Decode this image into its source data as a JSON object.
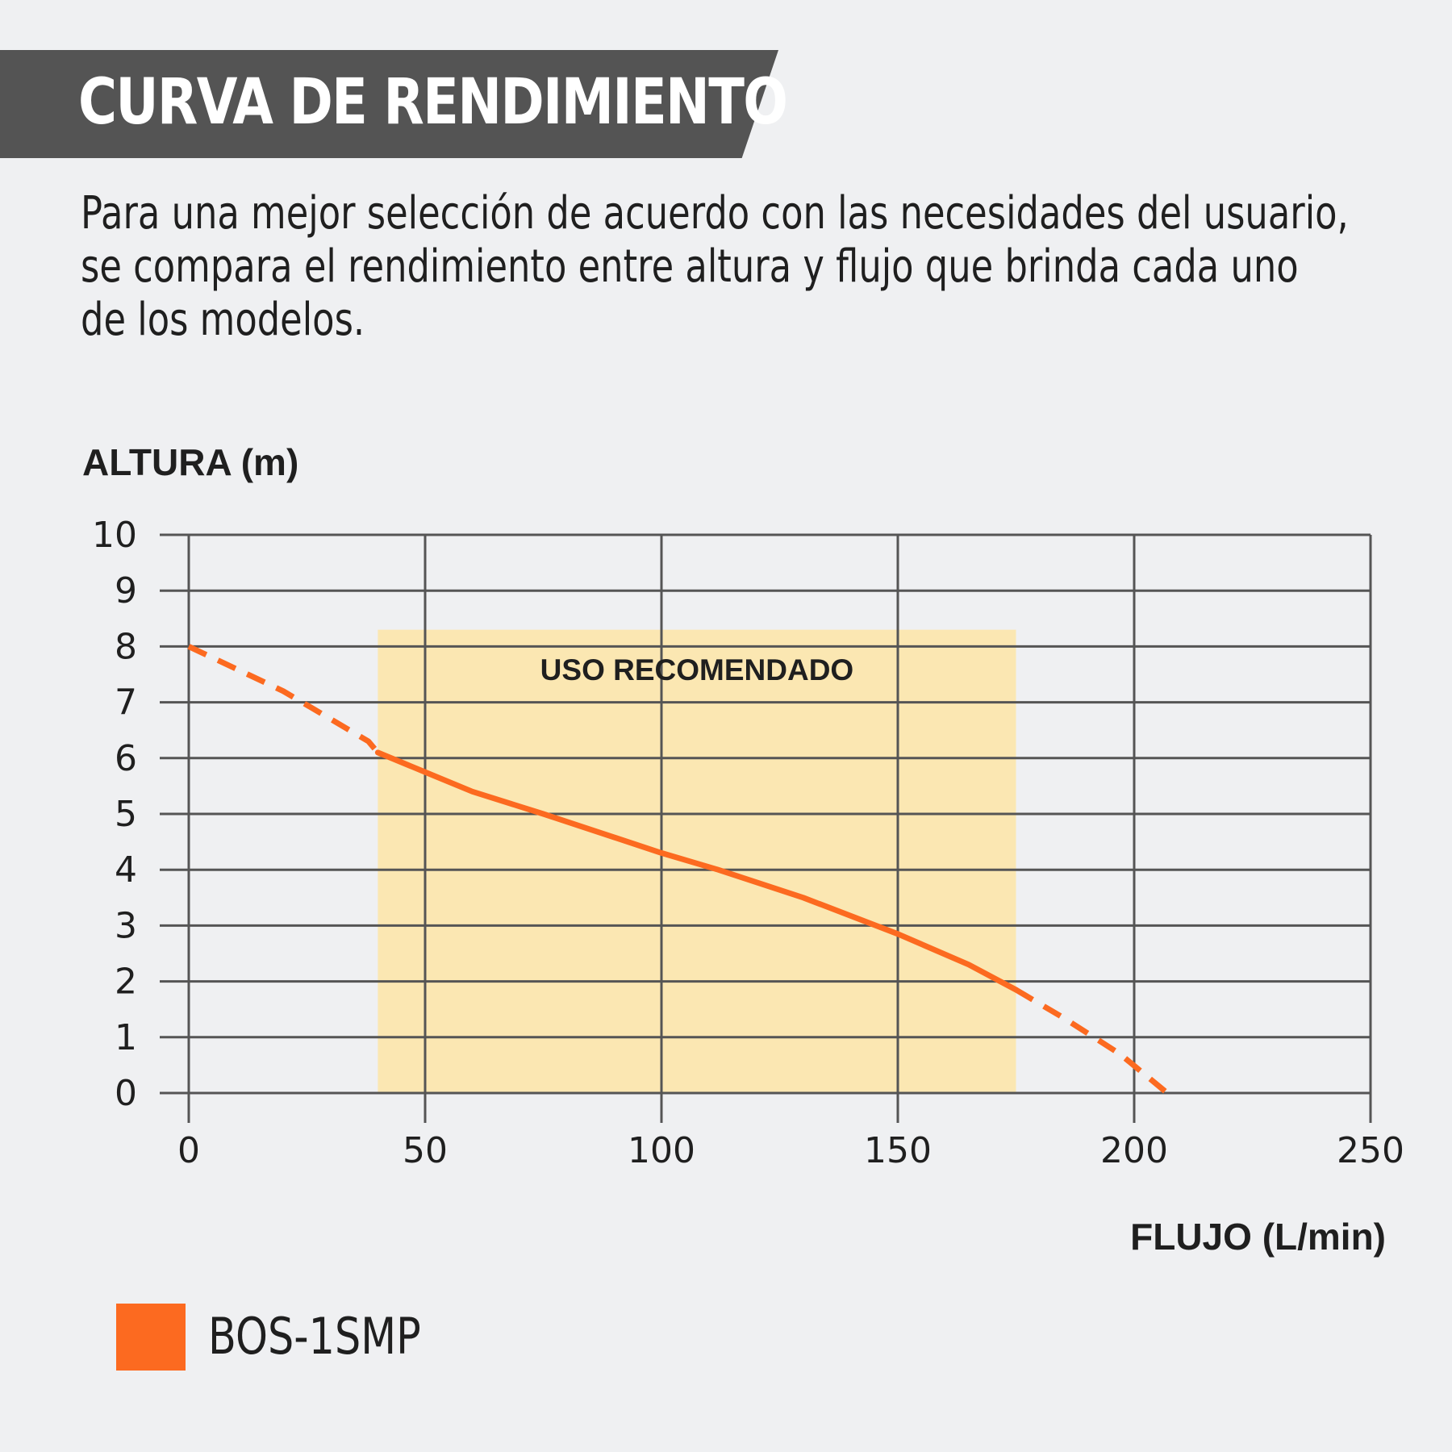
{
  "header": {
    "title": "CURVA DE RENDIMIENTO",
    "subtitle_lines": [
      "Para una mejor selección de acuerdo con las necesidades del usuario,",
      "se compara el rendimiento entre altura y flujo que brinda cada uno",
      "de los modelos."
    ]
  },
  "colors": {
    "background": "#eff0f2",
    "title_band": "#545454",
    "series": "#fc6a20",
    "recommended_band": "#fbe7b2",
    "grid": "#555555",
    "text": "#1f1f1f"
  },
  "chart_data": {
    "type": "line",
    "xlabel": "FLUJO (L/min)",
    "ylabel": "ALTURA (m)",
    "xlim": [
      0,
      250
    ],
    "ylim": [
      0,
      10
    ],
    "xticks": [
      0,
      50,
      100,
      150,
      200,
      250
    ],
    "yticks": [
      0,
      1,
      2,
      3,
      4,
      5,
      6,
      7,
      8,
      9,
      10
    ],
    "grid": true,
    "recommended_range": {
      "label": "USO RECOMENDADO",
      "x": [
        40,
        175
      ],
      "y": [
        0,
        8.3
      ]
    },
    "series": [
      {
        "name": "BOS-1SMP",
        "color": "#fc6a20",
        "points": [
          {
            "x": 0,
            "y": 8.0,
            "style": "dashed"
          },
          {
            "x": 20,
            "y": 7.2,
            "style": "dashed"
          },
          {
            "x": 38,
            "y": 6.3,
            "style": "dashed"
          },
          {
            "x": 40,
            "y": 6.1,
            "style": "solid"
          },
          {
            "x": 50,
            "y": 5.75,
            "style": "solid"
          },
          {
            "x": 60,
            "y": 5.4,
            "style": "solid"
          },
          {
            "x": 75,
            "y": 5.0,
            "style": "solid"
          },
          {
            "x": 100,
            "y": 4.3,
            "style": "solid"
          },
          {
            "x": 112,
            "y": 4.0,
            "style": "solid"
          },
          {
            "x": 130,
            "y": 3.5,
            "style": "solid"
          },
          {
            "x": 150,
            "y": 2.85,
            "style": "solid"
          },
          {
            "x": 165,
            "y": 2.3,
            "style": "solid"
          },
          {
            "x": 175,
            "y": 1.85,
            "style": "solid"
          },
          {
            "x": 185,
            "y": 1.35,
            "style": "dashed"
          },
          {
            "x": 197,
            "y": 0.7,
            "style": "dashed"
          },
          {
            "x": 207,
            "y": 0.0,
            "style": "dashed"
          }
        ]
      }
    ]
  },
  "legend": {
    "label": "BOS-1SMP"
  }
}
